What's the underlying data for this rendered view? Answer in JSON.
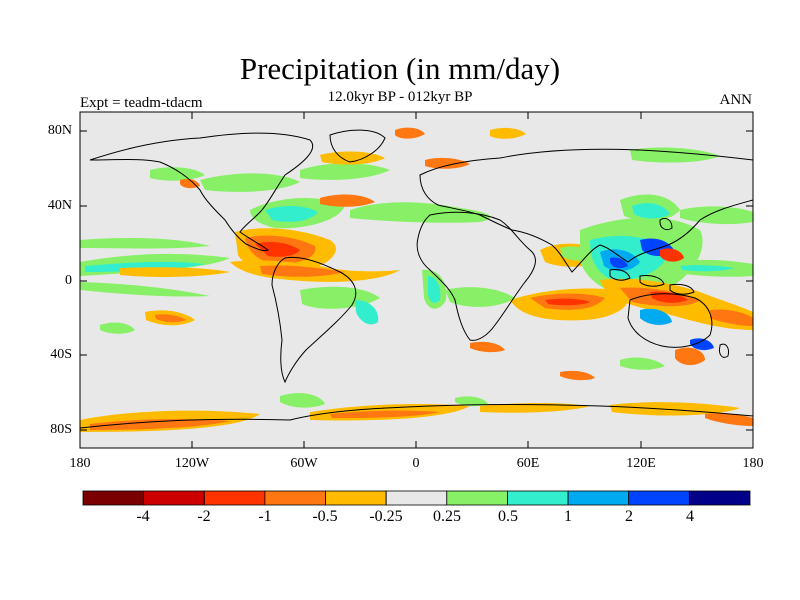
{
  "title": "Precipitation (in mm/day)",
  "subtitle": "12.0kyr BP - 012kyr BP",
  "left_label": "Expt = teadm-tdacm",
  "right_label": "ANN",
  "lat_ticks": [
    "80N",
    "40N",
    "0",
    "40S",
    "80S"
  ],
  "lon_ticks": [
    "180",
    "120W",
    "60W",
    "0",
    "60E",
    "120E",
    "180"
  ],
  "colorbar": {
    "tick_labels": [
      "-4",
      "-2",
      "-1",
      "-0.5",
      "-0.25",
      "0.25",
      "0.5",
      "1",
      "2",
      "4"
    ],
    "colors": [
      "#7a0000",
      "#cc0000",
      "#ff3300",
      "#ff7711",
      "#ffbb00",
      "#e8e8e8",
      "#88f066",
      "#33eecc",
      "#00aaf0",
      "#0044ff",
      "#000088"
    ]
  },
  "map": {
    "background": "#e8e8e8",
    "ocean_zero_color": "#e8e8e8",
    "coastline_color": "#000000"
  }
}
